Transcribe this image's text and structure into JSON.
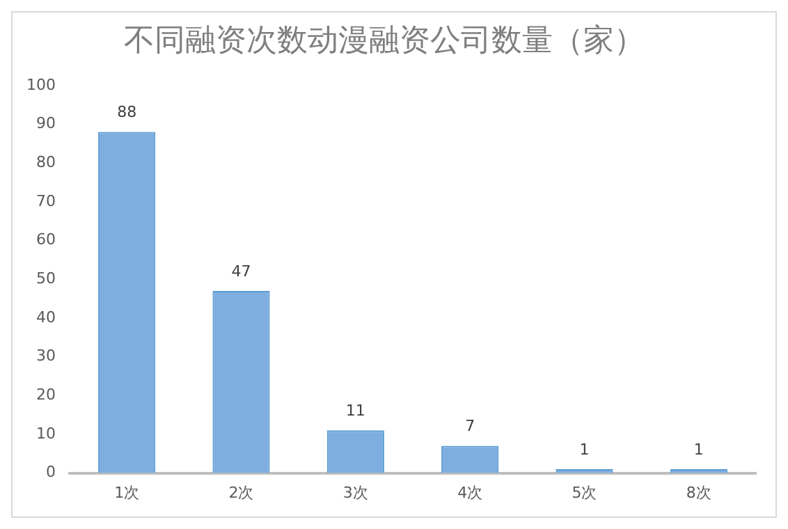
{
  "chart_data": {
    "type": "bar",
    "title": "不同融资次数动漫融资公司数量（家）",
    "categories": [
      "1次",
      "2次",
      "3次",
      "4次",
      "5次",
      "8次"
    ],
    "values": [
      88,
      47,
      11,
      7,
      1,
      1
    ],
    "color": "#7eaee0",
    "ylim": [
      0,
      100
    ],
    "yticks": [
      0,
      10,
      20,
      30,
      40,
      50,
      60,
      70,
      80,
      90,
      100
    ],
    "grid": false,
    "legend": false,
    "data_labels": true
  }
}
